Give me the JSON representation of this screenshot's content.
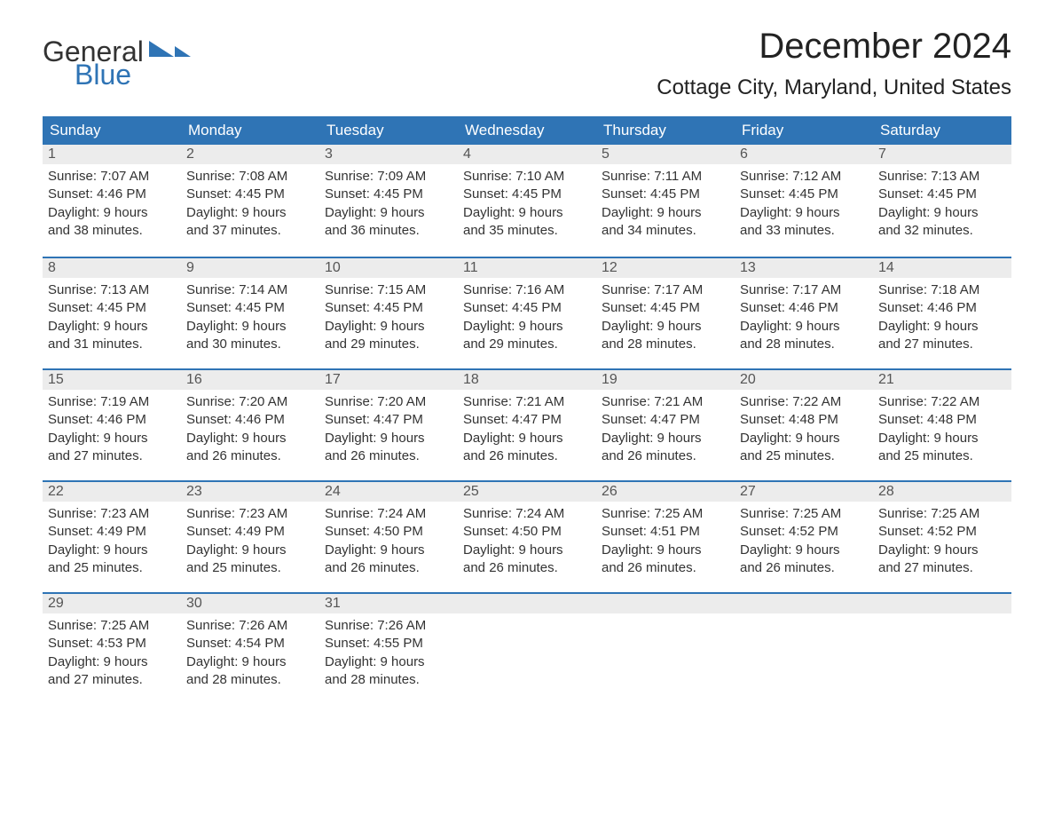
{
  "logo": {
    "line1": "General",
    "line2": "Blue"
  },
  "title": "December 2024",
  "location": "Cottage City, Maryland, United States",
  "colors": {
    "header_bg": "#2f74b5",
    "header_text": "#ffffff",
    "daynum_bg": "#ececec",
    "week_border": "#2f74b5",
    "body_text": "#333333",
    "page_bg": "#ffffff",
    "logo_blue": "#2f74b5"
  },
  "day_names": [
    "Sunday",
    "Monday",
    "Tuesday",
    "Wednesday",
    "Thursday",
    "Friday",
    "Saturday"
  ],
  "weeks": [
    [
      {
        "n": "1",
        "sunrise": "Sunrise: 7:07 AM",
        "sunset": "Sunset: 4:46 PM",
        "dl1": "Daylight: 9 hours",
        "dl2": "and 38 minutes."
      },
      {
        "n": "2",
        "sunrise": "Sunrise: 7:08 AM",
        "sunset": "Sunset: 4:45 PM",
        "dl1": "Daylight: 9 hours",
        "dl2": "and 37 minutes."
      },
      {
        "n": "3",
        "sunrise": "Sunrise: 7:09 AM",
        "sunset": "Sunset: 4:45 PM",
        "dl1": "Daylight: 9 hours",
        "dl2": "and 36 minutes."
      },
      {
        "n": "4",
        "sunrise": "Sunrise: 7:10 AM",
        "sunset": "Sunset: 4:45 PM",
        "dl1": "Daylight: 9 hours",
        "dl2": "and 35 minutes."
      },
      {
        "n": "5",
        "sunrise": "Sunrise: 7:11 AM",
        "sunset": "Sunset: 4:45 PM",
        "dl1": "Daylight: 9 hours",
        "dl2": "and 34 minutes."
      },
      {
        "n": "6",
        "sunrise": "Sunrise: 7:12 AM",
        "sunset": "Sunset: 4:45 PM",
        "dl1": "Daylight: 9 hours",
        "dl2": "and 33 minutes."
      },
      {
        "n": "7",
        "sunrise": "Sunrise: 7:13 AM",
        "sunset": "Sunset: 4:45 PM",
        "dl1": "Daylight: 9 hours",
        "dl2": "and 32 minutes."
      }
    ],
    [
      {
        "n": "8",
        "sunrise": "Sunrise: 7:13 AM",
        "sunset": "Sunset: 4:45 PM",
        "dl1": "Daylight: 9 hours",
        "dl2": "and 31 minutes."
      },
      {
        "n": "9",
        "sunrise": "Sunrise: 7:14 AM",
        "sunset": "Sunset: 4:45 PM",
        "dl1": "Daylight: 9 hours",
        "dl2": "and 30 minutes."
      },
      {
        "n": "10",
        "sunrise": "Sunrise: 7:15 AM",
        "sunset": "Sunset: 4:45 PM",
        "dl1": "Daylight: 9 hours",
        "dl2": "and 29 minutes."
      },
      {
        "n": "11",
        "sunrise": "Sunrise: 7:16 AM",
        "sunset": "Sunset: 4:45 PM",
        "dl1": "Daylight: 9 hours",
        "dl2": "and 29 minutes."
      },
      {
        "n": "12",
        "sunrise": "Sunrise: 7:17 AM",
        "sunset": "Sunset: 4:45 PM",
        "dl1": "Daylight: 9 hours",
        "dl2": "and 28 minutes."
      },
      {
        "n": "13",
        "sunrise": "Sunrise: 7:17 AM",
        "sunset": "Sunset: 4:46 PM",
        "dl1": "Daylight: 9 hours",
        "dl2": "and 28 minutes."
      },
      {
        "n": "14",
        "sunrise": "Sunrise: 7:18 AM",
        "sunset": "Sunset: 4:46 PM",
        "dl1": "Daylight: 9 hours",
        "dl2": "and 27 minutes."
      }
    ],
    [
      {
        "n": "15",
        "sunrise": "Sunrise: 7:19 AM",
        "sunset": "Sunset: 4:46 PM",
        "dl1": "Daylight: 9 hours",
        "dl2": "and 27 minutes."
      },
      {
        "n": "16",
        "sunrise": "Sunrise: 7:20 AM",
        "sunset": "Sunset: 4:46 PM",
        "dl1": "Daylight: 9 hours",
        "dl2": "and 26 minutes."
      },
      {
        "n": "17",
        "sunrise": "Sunrise: 7:20 AM",
        "sunset": "Sunset: 4:47 PM",
        "dl1": "Daylight: 9 hours",
        "dl2": "and 26 minutes."
      },
      {
        "n": "18",
        "sunrise": "Sunrise: 7:21 AM",
        "sunset": "Sunset: 4:47 PM",
        "dl1": "Daylight: 9 hours",
        "dl2": "and 26 minutes."
      },
      {
        "n": "19",
        "sunrise": "Sunrise: 7:21 AM",
        "sunset": "Sunset: 4:47 PM",
        "dl1": "Daylight: 9 hours",
        "dl2": "and 26 minutes."
      },
      {
        "n": "20",
        "sunrise": "Sunrise: 7:22 AM",
        "sunset": "Sunset: 4:48 PM",
        "dl1": "Daylight: 9 hours",
        "dl2": "and 25 minutes."
      },
      {
        "n": "21",
        "sunrise": "Sunrise: 7:22 AM",
        "sunset": "Sunset: 4:48 PM",
        "dl1": "Daylight: 9 hours",
        "dl2": "and 25 minutes."
      }
    ],
    [
      {
        "n": "22",
        "sunrise": "Sunrise: 7:23 AM",
        "sunset": "Sunset: 4:49 PM",
        "dl1": "Daylight: 9 hours",
        "dl2": "and 25 minutes."
      },
      {
        "n": "23",
        "sunrise": "Sunrise: 7:23 AM",
        "sunset": "Sunset: 4:49 PM",
        "dl1": "Daylight: 9 hours",
        "dl2": "and 25 minutes."
      },
      {
        "n": "24",
        "sunrise": "Sunrise: 7:24 AM",
        "sunset": "Sunset: 4:50 PM",
        "dl1": "Daylight: 9 hours",
        "dl2": "and 26 minutes."
      },
      {
        "n": "25",
        "sunrise": "Sunrise: 7:24 AM",
        "sunset": "Sunset: 4:50 PM",
        "dl1": "Daylight: 9 hours",
        "dl2": "and 26 minutes."
      },
      {
        "n": "26",
        "sunrise": "Sunrise: 7:25 AM",
        "sunset": "Sunset: 4:51 PM",
        "dl1": "Daylight: 9 hours",
        "dl2": "and 26 minutes."
      },
      {
        "n": "27",
        "sunrise": "Sunrise: 7:25 AM",
        "sunset": "Sunset: 4:52 PM",
        "dl1": "Daylight: 9 hours",
        "dl2": "and 26 minutes."
      },
      {
        "n": "28",
        "sunrise": "Sunrise: 7:25 AM",
        "sunset": "Sunset: 4:52 PM",
        "dl1": "Daylight: 9 hours",
        "dl2": "and 27 minutes."
      }
    ],
    [
      {
        "n": "29",
        "sunrise": "Sunrise: 7:25 AM",
        "sunset": "Sunset: 4:53 PM",
        "dl1": "Daylight: 9 hours",
        "dl2": "and 27 minutes."
      },
      {
        "n": "30",
        "sunrise": "Sunrise: 7:26 AM",
        "sunset": "Sunset: 4:54 PM",
        "dl1": "Daylight: 9 hours",
        "dl2": "and 28 minutes."
      },
      {
        "n": "31",
        "sunrise": "Sunrise: 7:26 AM",
        "sunset": "Sunset: 4:55 PM",
        "dl1": "Daylight: 9 hours",
        "dl2": "and 28 minutes."
      },
      {
        "empty": true
      },
      {
        "empty": true
      },
      {
        "empty": true
      },
      {
        "empty": true
      }
    ]
  ]
}
